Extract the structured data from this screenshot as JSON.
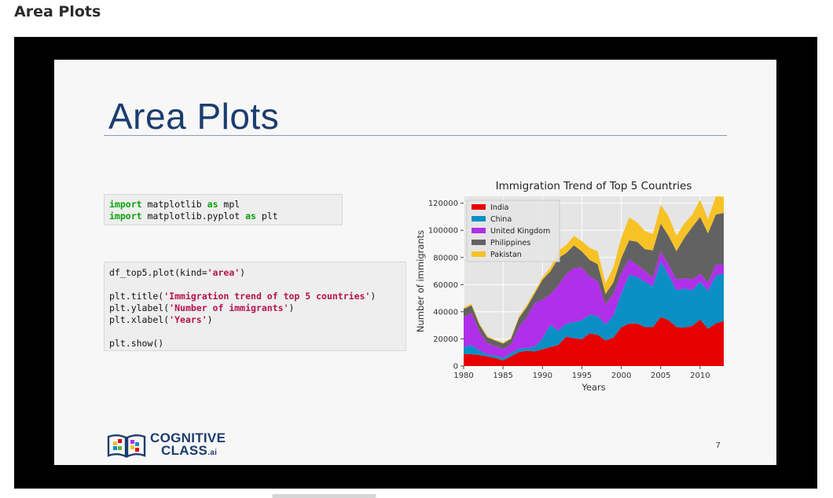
{
  "page": {
    "heading": "Area Plots"
  },
  "slide": {
    "title": "Area Plots",
    "page_number": "7",
    "logo": {
      "line1": "COGNITIVE",
      "line2": "CLASS",
      "suffix": ".ai"
    },
    "code_imports": {
      "line1": {
        "kw1": "import",
        "mid": " matplotlib ",
        "kw2": "as",
        "end": " mpl"
      },
      "line2": {
        "kw1": "import",
        "mid": " matplotlib.pyplot ",
        "kw2": "as",
        "end": " plt"
      }
    },
    "code_plot": {
      "l1_pre": "df_top5.plot(kind=",
      "l1_str": "'area'",
      "l1_post": ")",
      "l2_pre": "plt.title(",
      "l2_str": "'Immigration trend of top 5 countries'",
      "l2_post": ")",
      "l3_pre": "plt.ylabel(",
      "l3_str": "'Number of immigrants'",
      "l3_post": ")",
      "l4_pre": "plt.xlabel(",
      "l4_str": "'Years'",
      "l4_post": ")",
      "l5": "plt.show()"
    }
  },
  "chart_data": {
    "type": "area",
    "stacked": true,
    "title": "Immigration Trend of Top 5 Countries",
    "xlabel": "Years",
    "ylabel": "Number of immigrants",
    "xlim": [
      1980,
      2013
    ],
    "ylim": [
      0,
      125000
    ],
    "xticks": [
      1980,
      1985,
      1990,
      1995,
      2000,
      2005,
      2010
    ],
    "yticks": [
      0,
      20000,
      40000,
      60000,
      80000,
      100000,
      120000
    ],
    "grid": true,
    "legend_position": "top-left",
    "background": "#e5e5e5",
    "x": [
      1980,
      1981,
      1982,
      1983,
      1984,
      1985,
      1986,
      1987,
      1988,
      1989,
      1990,
      1991,
      1992,
      1993,
      1994,
      1995,
      1996,
      1997,
      1998,
      1999,
      2000,
      2001,
      2002,
      2003,
      2004,
      2005,
      2006,
      2007,
      2008,
      2009,
      2010,
      2011,
      2012,
      2013
    ],
    "series": [
      {
        "name": "India",
        "color": "#e60000",
        "values": [
          8900,
          8700,
          8100,
          7100,
          5900,
          4200,
          7100,
          10200,
          11200,
          10800,
          12300,
          14000,
          15500,
          21700,
          20500,
          19800,
          24100,
          23000,
          18900,
          21000,
          28600,
          31300,
          31400,
          28700,
          28600,
          36200,
          33800,
          28700,
          28300,
          29500,
          34200,
          27500,
          31400,
          33100
        ]
      },
      {
        "name": "China",
        "color": "#0a8fc5",
        "values": [
          5100,
          6700,
          3300,
          1500,
          1800,
          1700,
          2400,
          2500,
          2100,
          3500,
          8000,
          16500,
          10500,
          9500,
          11800,
          13900,
          13900,
          13700,
          11700,
          16300,
          25000,
          36000,
          34300,
          33600,
          30000,
          40800,
          33200,
          27000,
          28800,
          26300,
          28000,
          27900,
          35400,
          35000
        ]
      },
      {
        "name": "United Kingdom",
        "color": "#b02fe8",
        "values": [
          22000,
          23500,
          14000,
          8200,
          7000,
          6700,
          6400,
          16000,
          22500,
          32000,
          28500,
          22300,
          33500,
          36500,
          40000,
          38800,
          28000,
          26000,
          14800,
          16000,
          14900,
          11300,
          8900,
          7800,
          6500,
          7500,
          7700,
          7900,
          7700,
          8000,
          5900,
          5800,
          8100,
          6500
        ]
      },
      {
        "name": "Philippines",
        "color": "#626262",
        "values": [
          6000,
          5900,
          5000,
          4400,
          4000,
          4000,
          4100,
          6500,
          7500,
          7000,
          14800,
          16800,
          20000,
          15500,
          16600,
          11900,
          12100,
          12400,
          7600,
          8400,
          11000,
          14000,
          17000,
          16000,
          20100,
          20400,
          21200,
          21000,
          29700,
          38600,
          41800,
          36500,
          36800,
          38200
        ]
      },
      {
        "name": "Pakistan",
        "color": "#f7c225",
        "values": [
          1000,
          1000,
          1000,
          700,
          700,
          700,
          700,
          1200,
          1700,
          1600,
          1800,
          2900,
          5400,
          5900,
          7000,
          7600,
          8900,
          9500,
          8000,
          11000,
          15000,
          16800,
          14300,
          13400,
          12100,
          13800,
          14400,
          11300,
          10600,
          9100,
          12600,
          10400,
          13400,
          12000
        ]
      }
    ]
  }
}
